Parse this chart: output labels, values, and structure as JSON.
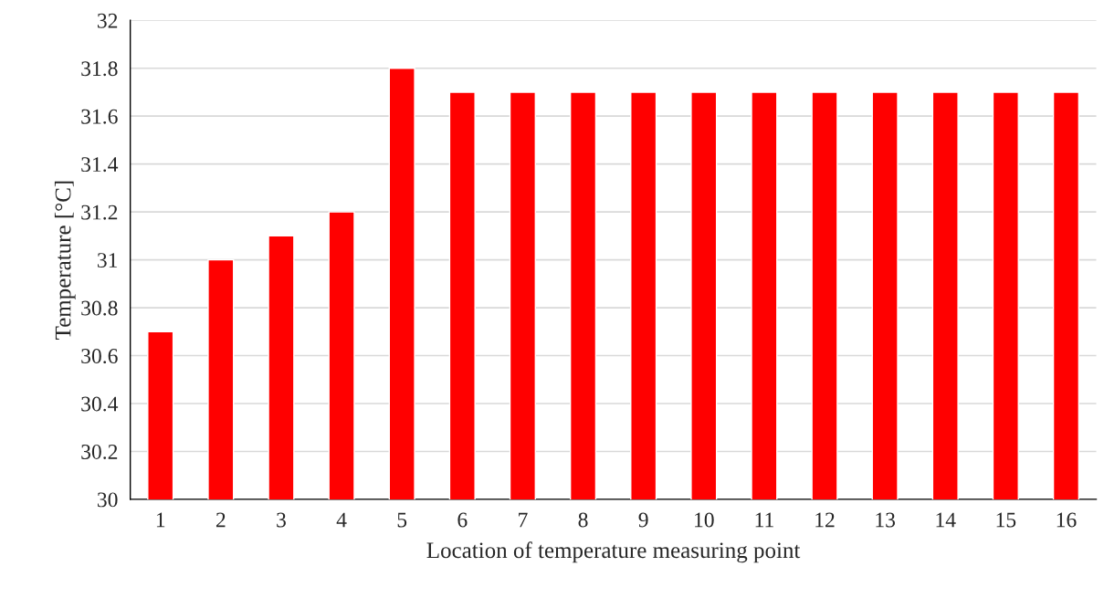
{
  "chart_data": {
    "type": "bar",
    "xlabel": "Location of temperature measuring point",
    "ylabel": "Temperature [°C]",
    "categories": [
      "1",
      "2",
      "3",
      "4",
      "5",
      "6",
      "7",
      "8",
      "9",
      "10",
      "11",
      "12",
      "13",
      "14",
      "15",
      "16"
    ],
    "values": [
      30.7,
      31.0,
      31.1,
      31.2,
      31.8,
      31.7,
      31.7,
      31.7,
      31.7,
      31.7,
      31.7,
      31.7,
      31.7,
      31.7,
      31.7,
      31.7
    ],
    "color": "#ff0000",
    "ylim": [
      30,
      32
    ],
    "yticks": [
      30,
      30.2,
      30.4,
      30.6,
      30.8,
      31,
      31.2,
      31.4,
      31.6,
      31.8,
      32
    ],
    "grid": "y",
    "legend": false
  }
}
